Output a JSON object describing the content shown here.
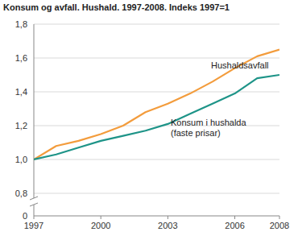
{
  "chart_data": {
    "type": "line",
    "title": "Konsum og avfall. Hushald. 1997-2008. Indeks 1997=1",
    "x": [
      1997,
      1998,
      1999,
      2000,
      2001,
      2002,
      2003,
      2004,
      2005,
      2006,
      2007,
      2008
    ],
    "xlim": [
      1997,
      2008
    ],
    "xticks": [
      1997,
      2000,
      2003,
      2006,
      2008
    ],
    "ylim": [
      0,
      1.8
    ],
    "yticks": [
      {
        "value": 0,
        "label": "0"
      },
      {
        "value": 0.8,
        "label": "0,8"
      },
      {
        "value": 1.0,
        "label": "1,0"
      },
      {
        "value": 1.2,
        "label": "1,2"
      },
      {
        "value": 1.4,
        "label": "1,4"
      },
      {
        "value": 1.6,
        "label": "1,6"
      },
      {
        "value": 1.8,
        "label": "1,8"
      }
    ],
    "grid": true,
    "series": [
      {
        "name": "Hushaldsavfall",
        "color": "#f39c3c",
        "values": [
          1.0,
          1.08,
          1.11,
          1.15,
          1.2,
          1.28,
          1.33,
          1.39,
          1.46,
          1.54,
          1.61,
          1.65
        ]
      },
      {
        "name": "Konsum i hushalda (faste prisar)",
        "color": "#1e9488",
        "values": [
          1.0,
          1.03,
          1.07,
          1.11,
          1.14,
          1.17,
          1.21,
          1.27,
          1.33,
          1.39,
          1.48,
          1.5
        ]
      }
    ]
  }
}
